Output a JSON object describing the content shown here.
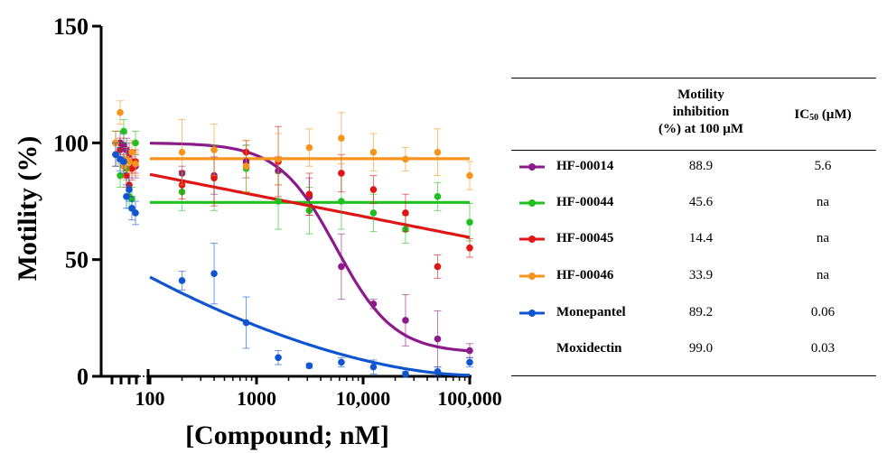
{
  "chart_data": {
    "type": "scatter",
    "ylabel": "Motility (%)",
    "xlabel": "[Compound; nM]",
    "x_scale": "log",
    "xlim": [
      100,
      100000
    ],
    "ylim": [
      0,
      150
    ],
    "y_ticks": [
      "0",
      "50",
      "100",
      "150"
    ],
    "x_ticks": [
      "100",
      "1000",
      "10,000",
      "100,000"
    ],
    "x_concentrations": [
      200,
      400,
      800,
      1600,
      3125,
      6250,
      12500,
      25000,
      50000,
      100000
    ],
    "series": [
      {
        "name": "HF-00014",
        "color": "#8B1A8B",
        "fit": "sigmoid",
        "fit_params": {
          "top": 100,
          "bottom": 10,
          "ic50": 5600,
          "hill": 1.6
        },
        "values": [
          87,
          86,
          92,
          88,
          77,
          47,
          31,
          24,
          16,
          11
        ],
        "errors": [
          3,
          8,
          7,
          6,
          8,
          14,
          2,
          11,
          12,
          3
        ],
        "control_values": [
          100,
          100,
          99,
          97,
          95,
          92,
          90
        ]
      },
      {
        "name": "HF-00044",
        "color": "#1FC01F",
        "fit": "flat",
        "fit_params": {
          "level": 74.5
        },
        "values": [
          79,
          85,
          89,
          75,
          71,
          75,
          70,
          63,
          77,
          66
        ],
        "errors": [
          8,
          14,
          10,
          12,
          10,
          12,
          8,
          6,
          6,
          8
        ],
        "control_values": [
          100,
          86,
          105,
          89,
          77,
          76,
          100
        ]
      },
      {
        "name": "HF-00045",
        "color": "#E01515",
        "fit": "linear-log",
        "fit_params": {
          "y_start": 86.5,
          "y_end": 59.5
        },
        "values": [
          82,
          85,
          96,
          92,
          78,
          87,
          80,
          70,
          47,
          55
        ],
        "errors": [
          6,
          12,
          5,
          15,
          9,
          8,
          6,
          8,
          5,
          4
        ],
        "control_values": [
          95,
          97,
          90,
          86,
          82,
          89,
          92
        ]
      },
      {
        "name": "HF-00046",
        "color": "#F7941D",
        "fit": "flat",
        "fit_params": {
          "level": 93.2
        },
        "values": [
          96,
          97,
          90,
          93,
          98,
          102,
          96,
          93,
          96,
          86
        ],
        "errors": [
          14,
          11,
          11,
          11,
          8,
          11,
          8,
          5,
          10,
          6
        ],
        "control_values": [
          100,
          113,
          90,
          93,
          92,
          96,
          91
        ]
      },
      {
        "name": "Monepantel",
        "color": "#1055D0",
        "fit": "decay",
        "fit_params": {
          "y_start": 42.5,
          "y_end": 0.5
        },
        "values": [
          41,
          44,
          23,
          8,
          4.5,
          6,
          4,
          1,
          2,
          6
        ],
        "errors": [
          4,
          13,
          11,
          3,
          1,
          2,
          3,
          1,
          2,
          2
        ],
        "control_values": [
          95,
          93,
          92,
          77,
          80,
          72,
          70
        ]
      }
    ],
    "table": {
      "columns": [
        "",
        "Motility inhibition (%) at 100 µM",
        "IC50 (µM)"
      ],
      "header_col1_lines": [
        "Motility",
        "inhibition",
        "(%) at 100 µM"
      ],
      "header_col2_base": "IC",
      "header_col2_sub": "50",
      "header_col2_tail": " (µM)",
      "rows": [
        {
          "name": "HF-00014",
          "color": "#8B1A8B",
          "inhibition": "88.9",
          "ic50": "5.6"
        },
        {
          "name": "HF-00044",
          "color": "#1FC01F",
          "inhibition": "45.6",
          "ic50": "na"
        },
        {
          "name": "HF-00045",
          "color": "#E01515",
          "inhibition": "14.4",
          "ic50": "na"
        },
        {
          "name": "HF-00046",
          "color": "#F7941D",
          "inhibition": "33.9",
          "ic50": "na"
        },
        {
          "name": "Monepantel",
          "color": "#1055D0",
          "inhibition": "89.2",
          "ic50": "0.06"
        },
        {
          "name": "Moxidectin",
          "color": "",
          "inhibition": "99.0",
          "ic50": "0.03"
        }
      ]
    }
  }
}
